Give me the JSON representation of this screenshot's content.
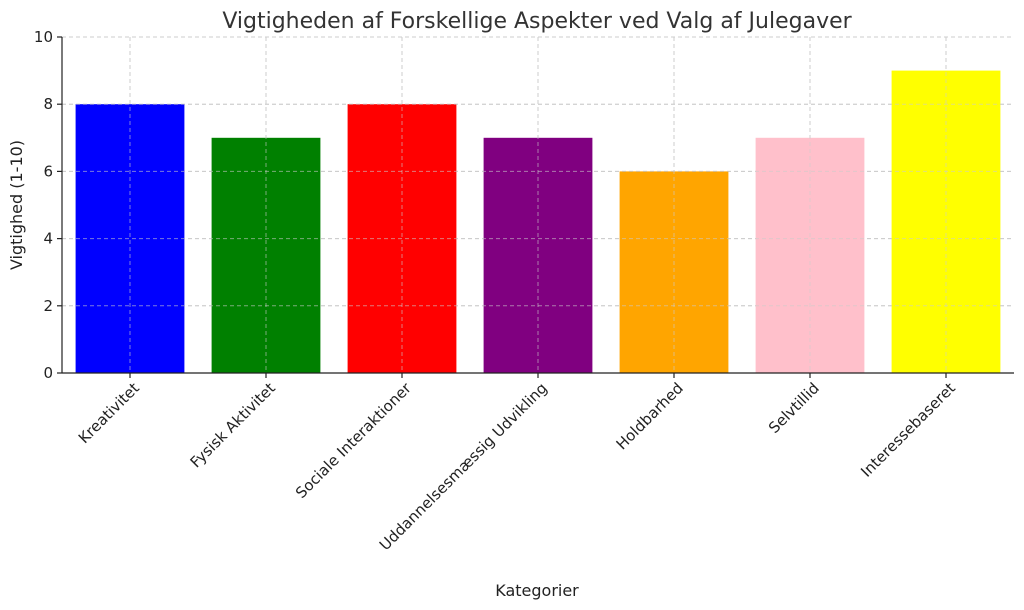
{
  "chart_data": {
    "type": "bar",
    "title": "Vigtigheden af Forskellige Aspekter ved Valg af Julegaver",
    "xlabel": "Kategorier",
    "ylabel": "Vigtighed (1-10)",
    "categories": [
      "Kreativitet",
      "Fysisk Aktivitet",
      "Sociale Interaktioner",
      "Uddannelsesmæssig Udvikling",
      "Holdbarhed",
      "Selvtillid",
      "Interessebaseret"
    ],
    "values": [
      8,
      7,
      8,
      7,
      6,
      7,
      9
    ],
    "colors": [
      "#0000ff",
      "#008000",
      "#ff0000",
      "#800080",
      "#ffa500",
      "#ffc0cb",
      "#ffff00"
    ],
    "ylim": [
      0,
      10
    ],
    "yticks": [
      0,
      2,
      4,
      6,
      8,
      10
    ],
    "grid": true,
    "x_tick_rotation": "45 degrees"
  }
}
